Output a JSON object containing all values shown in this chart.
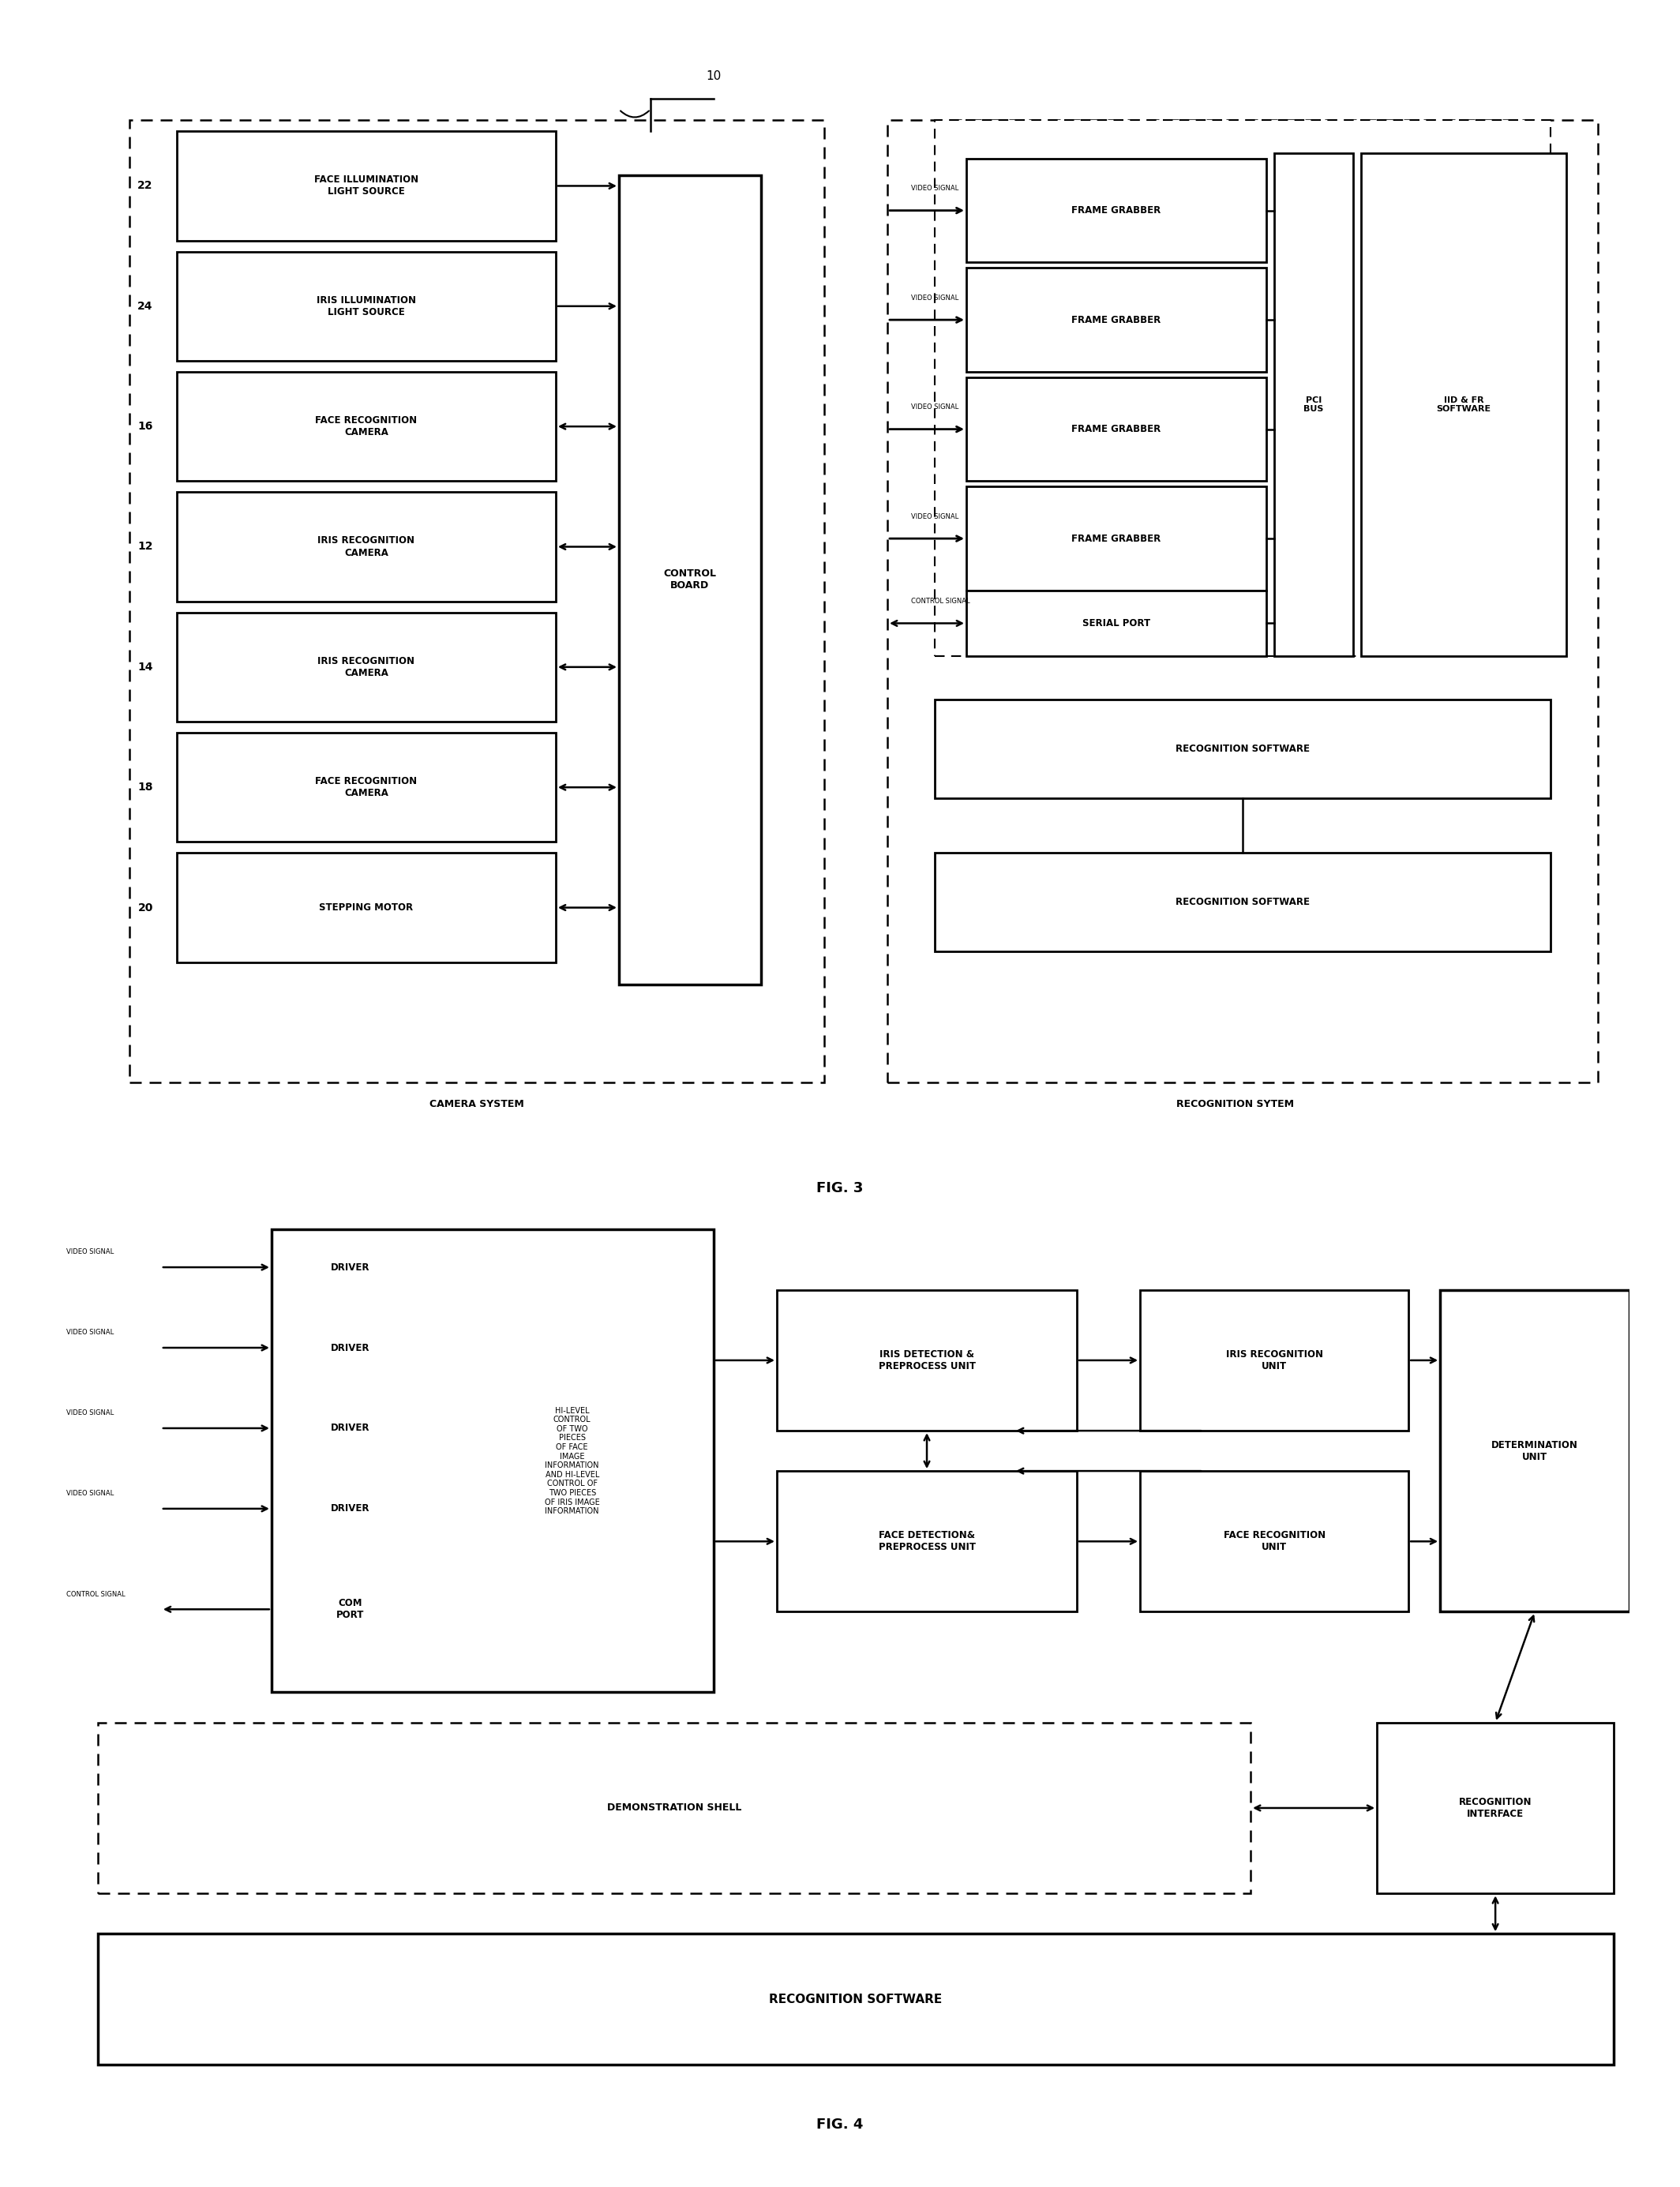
{
  "fig_width": 21.28,
  "fig_height": 27.7,
  "bg_color": "#ffffff",
  "fig3": {
    "title": "FIG. 3",
    "camera_system_label": "CAMERA SYSTEM",
    "recognition_system_label": "RECOGNITION SYTEM",
    "control_board_label": "CONTROL\nBOARD",
    "pci_bus_label": "PCI\nBUS",
    "iid_fr_label": "IID & FR\nSOFTWARE",
    "left_boxes": [
      {
        "label": "FACE ILLUMINATION\nLIGHT SOURCE",
        "num": "22"
      },
      {
        "label": "IRIS ILLUMINATION\nLIGHT SOURCE",
        "num": "24"
      },
      {
        "label": "FACE RECOGNITION\nCAMERA",
        "num": "16"
      },
      {
        "label": "IRIS RECOGNITION\nCAMERA",
        "num": "12"
      },
      {
        "label": "IRIS RECOGNITION\nCAMERA",
        "num": "14"
      },
      {
        "label": "FACE RECOGNITION\nCAMERA",
        "num": "18"
      },
      {
        "label": "STEPPING MOTOR",
        "num": "20"
      }
    ],
    "video_signals": [
      "VIDEO SIGNAL",
      "VIDEO SIGNAL",
      "VIDEO SIGNAL",
      "VIDEO SIGNAL"
    ],
    "control_signal_label": "CONTROL SIGNAL",
    "serial_port_label": "SERIAL PORT",
    "recognition_software_labels": [
      "RECOGNITION SOFTWARE",
      "RECOGNITION SOFTWARE"
    ]
  },
  "fig4": {
    "title": "FIG. 4",
    "input_signals": [
      "VIDEO SIGNAL",
      "VIDEO SIGNAL",
      "VIDEO SIGNAL",
      "VIDEO SIGNAL",
      "CONTROL SIGNAL"
    ],
    "driver_labels": [
      "DRIVER",
      "DRIVER",
      "DRIVER",
      "DRIVER",
      "COM\nPORT"
    ],
    "hi_level_text": "HI-LEVEL\nCONTROL\nOF TWO\nPIECES\nOF FACE\nIMAGE\nINFORMATION\nAND HI-LEVEL\nCONTROL OF\nTWO PIECES\nOF IRIS IMAGE\nINFORMATION",
    "iris_detect_label": "IRIS DETECTION &\nPREPROCESS UNIT",
    "iris_recog_label": "IRIS RECOGNITION\nUNIT",
    "face_detect_label": "FACE DETECTION&\nPREPROCESS UNIT",
    "face_recog_label": "FACE RECOGNITION\nUNIT",
    "determination_label": "DETERMINATION\nUNIT",
    "demo_shell_label": "DEMONSTRATION SHELL",
    "recognition_interface_label": "RECOGNITION\nINTERFACE",
    "recognition_software_label": "RECOGNITION SOFTWARE"
  }
}
